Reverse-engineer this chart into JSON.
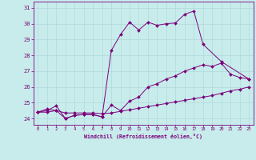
{
  "xlabel": "Windchill (Refroidissement éolien,°C)",
  "bg_color": "#c8ecec",
  "line_color": "#7b007b",
  "grid_color": "#b0d8d8",
  "x_ticks": [
    0,
    1,
    2,
    3,
    4,
    5,
    6,
    7,
    8,
    9,
    10,
    11,
    12,
    13,
    14,
    15,
    16,
    17,
    18,
    19,
    20,
    21,
    22,
    23
  ],
  "y_ticks": [
    24,
    25,
    26,
    27,
    28,
    29,
    30,
    31
  ],
  "ylim": [
    23.6,
    31.4
  ],
  "xlim": [
    -0.5,
    23.5
  ],
  "series1_x": [
    0,
    1,
    2,
    3,
    4,
    5,
    6,
    7,
    8,
    9,
    10,
    11,
    12,
    13,
    14,
    15,
    16,
    17,
    18,
    20,
    23
  ],
  "series1_y": [
    24.4,
    24.6,
    24.5,
    24.0,
    24.2,
    24.25,
    24.25,
    24.1,
    28.3,
    29.3,
    30.1,
    29.6,
    30.1,
    29.9,
    30.0,
    30.05,
    30.6,
    30.8,
    28.7,
    27.6,
    26.5
  ],
  "series2_x": [
    0,
    1,
    2,
    3,
    4,
    5,
    6,
    7,
    8,
    9,
    10,
    11,
    12,
    13,
    14,
    15,
    16,
    17,
    18,
    19,
    20,
    21,
    22,
    23
  ],
  "series2_y": [
    24.4,
    24.5,
    24.8,
    24.0,
    24.2,
    24.25,
    24.25,
    24.1,
    24.85,
    24.5,
    25.1,
    25.35,
    26.0,
    26.2,
    26.5,
    26.7,
    27.0,
    27.2,
    27.4,
    27.3,
    27.5,
    26.8,
    26.6,
    26.5
  ],
  "series3_x": [
    0,
    1,
    2,
    3,
    4,
    5,
    6,
    7,
    8,
    9,
    10,
    11,
    12,
    13,
    14,
    15,
    16,
    17,
    18,
    19,
    20,
    21,
    22,
    23
  ],
  "series3_y": [
    24.4,
    24.4,
    24.5,
    24.35,
    24.35,
    24.35,
    24.35,
    24.3,
    24.35,
    24.45,
    24.55,
    24.65,
    24.75,
    24.85,
    24.95,
    25.05,
    25.15,
    25.25,
    25.35,
    25.45,
    25.6,
    25.75,
    25.85,
    26.0
  ]
}
